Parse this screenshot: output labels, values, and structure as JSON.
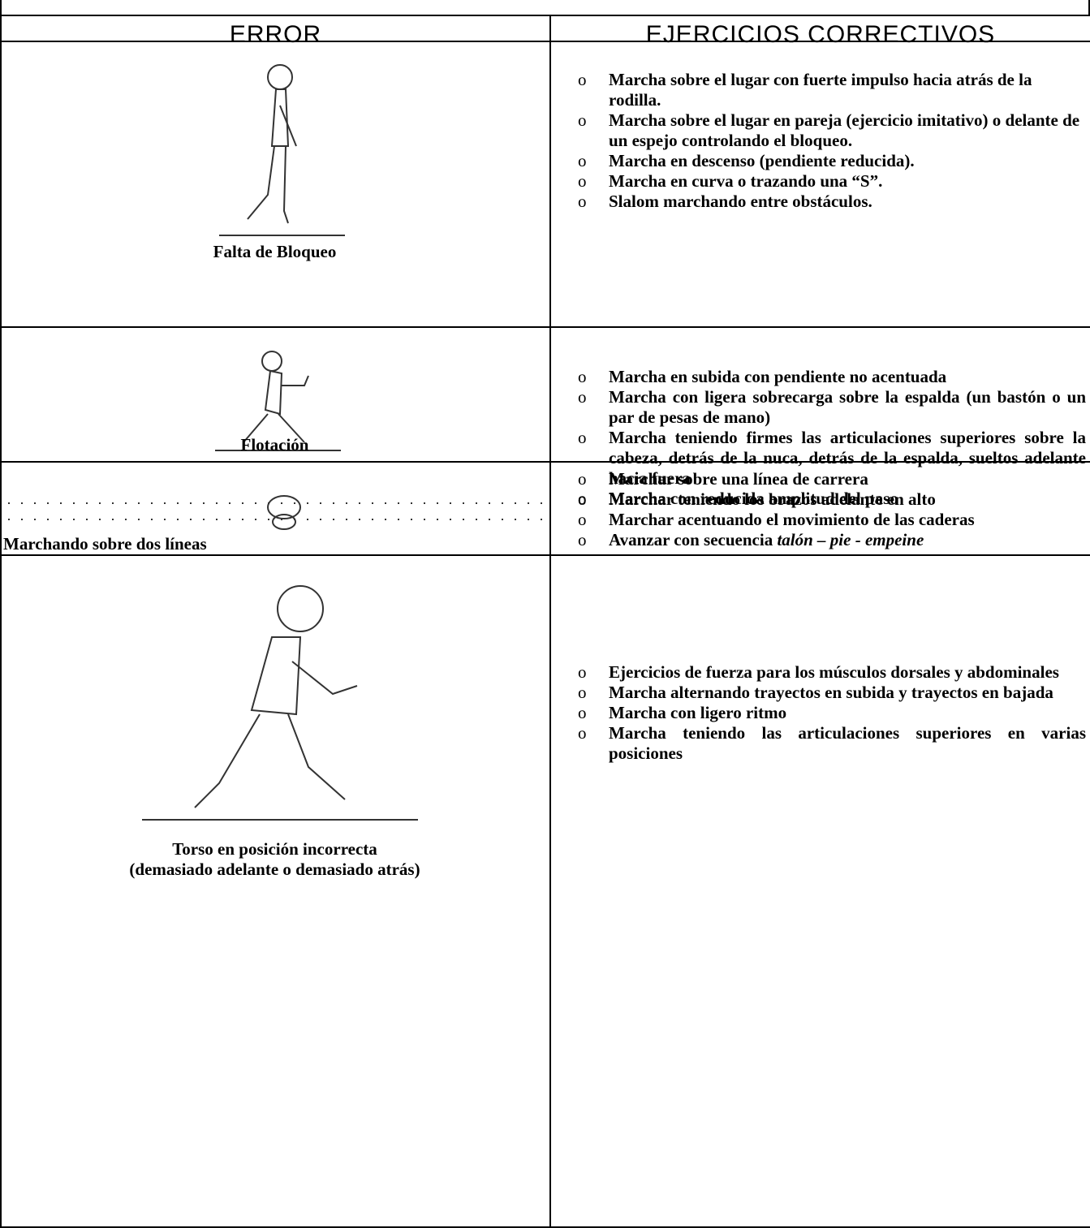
{
  "table": {
    "header": [
      "ERROR",
      "EJERCICIOS CORRECTIVOS"
    ],
    "rows": [
      {
        "error": [
          "Falta de Bloqueo"
        ],
        "exercises": [
          "Marcha  sobre el lugar con fuerte impulso hacia atrás de la rodilla.",
          "Marcha  sobre el lugar en pareja (ejercicio imitativo) o delante de un espejo controlando el bloqueo.",
          "Marcha  en descenso (pendiente reducida).",
          "Marcha en curva o trazando una “S”.",
          "Slalom marchando entre obstáculos."
        ]
      },
      {
        "error": [
          "Flotación"
        ],
        "exercises": [
          "Marcha en subida con pendiente no acentuada",
          "Marcha con ligera sobrecarga sobre la espalda (un bastón o un par de pesas de mano)",
          "Marcha teniendo firmes las articulaciones superiores sobre la cabeza, detrás de la nuca, detrás de la espalda, sueltos adelante hacia fuera",
          "Marcha con reducida amplitud del paso"
        ]
      },
      {
        "error": [
          "Marchando sobre dos líneas"
        ],
        "exercises": [
          "Marchar sobre una línea de carrera",
          "Marchar teniendo los brazos adelante en alto",
          "Marchar acentuando el movimiento  de las caderas",
          {
            "text": "Avanzar con secuencia ",
            "emphasis": "talón – pie - empeine"
          }
        ]
      },
      {
        "error": [
          "Torso en posición incorrecta",
          "(demasiado adelante o demasiado atrás)"
        ],
        "exercises": [
          "Ejercicios de fuerza para los músculos dorsales y abdominales",
          "Marcha alternando trayectos en subida y trayectos en bajada",
          "Marcha con ligero ritmo",
          "Marcha teniendo las articulaciones superiores en varias posiciones"
        ]
      }
    ]
  }
}
